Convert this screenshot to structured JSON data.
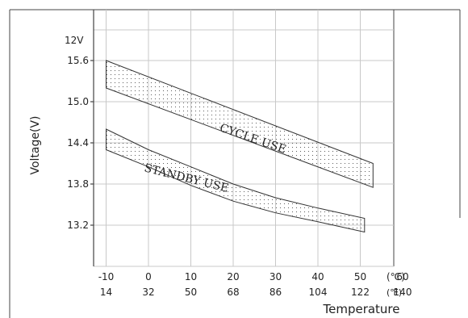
{
  "chart_data": {
    "type": "area",
    "xlabel": "Temperature",
    "ylabel": "Voltage(V)",
    "ylabel_sub": "12V",
    "x_ticks_c": [
      "-10",
      "0",
      "10",
      "20",
      "30",
      "40",
      "50",
      "60"
    ],
    "x_ticks_f": [
      "14",
      "32",
      "50",
      "68",
      "86",
      "104",
      "122",
      "140"
    ],
    "x_unit_c": "(℃)",
    "x_unit_f": "(℉)",
    "y_ticks": [
      "15.6",
      "15.0",
      "14.4",
      "13.8",
      "13.2"
    ],
    "x_range_c": [
      -10,
      60
    ],
    "y_range": [
      13.2,
      15.6
    ],
    "grid": true,
    "series": [
      {
        "name": "CYCLE USE",
        "upper": [
          [
            -10,
            15.6
          ],
          [
            53,
            14.1
          ]
        ],
        "lower": [
          [
            -10,
            15.2
          ],
          [
            53,
            13.75
          ]
        ],
        "fill": "dotted"
      },
      {
        "name": "STANDBY USE",
        "upper": [
          [
            -10,
            14.6
          ],
          [
            0,
            14.3
          ],
          [
            10,
            14.05
          ],
          [
            20,
            13.8
          ],
          [
            30,
            13.6
          ],
          [
            40,
            13.45
          ],
          [
            51,
            13.3
          ]
        ],
        "lower": [
          [
            -10,
            14.3
          ],
          [
            0,
            14.05
          ],
          [
            10,
            13.78
          ],
          [
            20,
            13.55
          ],
          [
            30,
            13.38
          ],
          [
            40,
            13.25
          ],
          [
            51,
            13.1
          ]
        ],
        "fill": "dotted"
      }
    ]
  }
}
